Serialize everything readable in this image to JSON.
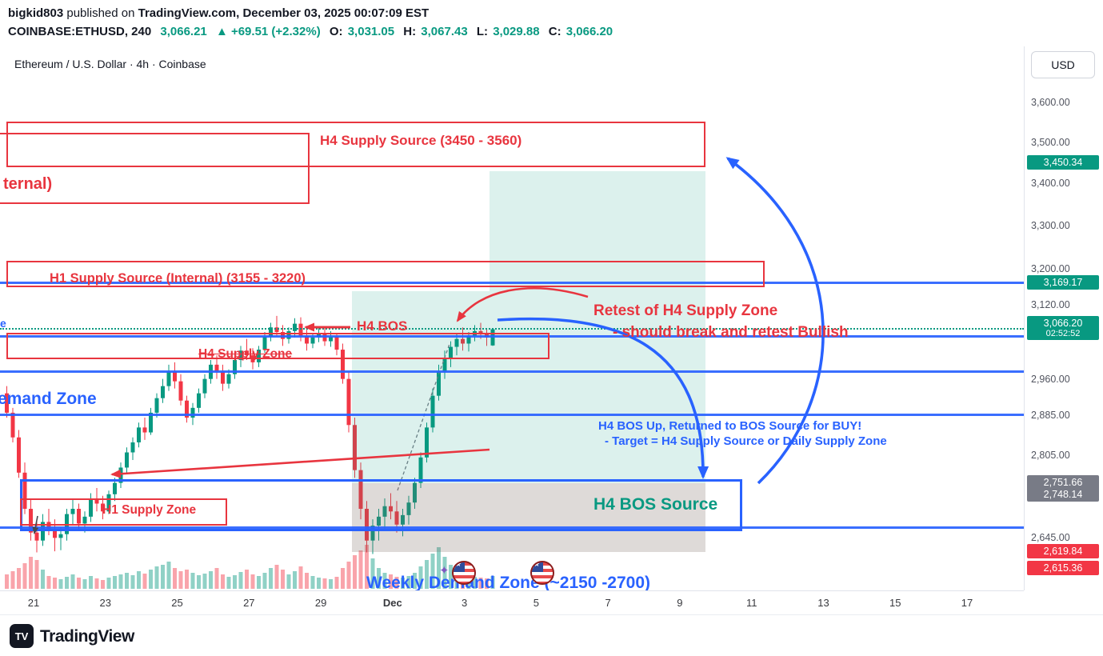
{
  "header": {
    "publish_line": {
      "user": "bigkid803",
      "mid": " published on ",
      "rest": "TradingView.com, December 03, 2025 00:07:09 EST"
    },
    "symbol_line": {
      "symbol": "COINBASE:ETHUSD, 240",
      "last": "3,066.21",
      "change": "▲ +69.51 (+2.32%)",
      "o_label": "O:",
      "o": "3,031.05",
      "h_label": "H:",
      "h": "3,067.43",
      "l_label": "L:",
      "l": "3,029.88",
      "c_label": "C:",
      "c": "3,066.20"
    }
  },
  "chart": {
    "title": "Ethereum / U.S. Dollar · 4h · Coinbase",
    "currency": "USD"
  },
  "annotations": {
    "h4_supply_source": "H4 Supply Source (3450 - 3560)",
    "daily_supply_cut": "ternal)",
    "h1_supply_source": "H1 Supply Source (Internal) (3155 - 3220)",
    "h4_bos": "H4 BOS",
    "h4_supply_zone": "H4 Supply Zone",
    "retest_line1": "Retest of H4 Supply Zone",
    "retest_line2": "- should break and retest Bullish",
    "left_cut_e": "e",
    "demand_zone_cut": "emand Zone",
    "bos_up_line1": "H4 BOS Up, Returned to BOS Source for BUY!",
    "bos_up_line2": "- Target = H4 Supply Source or Daily Supply Zone",
    "h4_bos_source": "H4 BOS Source",
    "h1_supply_zone": "H1 Supply Zone",
    "weekly_demand": "Weekly Demand Zone (~2150 -2700)"
  },
  "price_axis": {
    "ticks": [
      {
        "label": "3,600.00",
        "price": 3600
      },
      {
        "label": "3,500.00",
        "price": 3500
      },
      {
        "label": "3,400.00",
        "price": 3400
      },
      {
        "label": "3,300.00",
        "price": 3300
      },
      {
        "label": "3,200.00",
        "price": 3200
      },
      {
        "label": "3,120.00",
        "price": 3120
      },
      {
        "label": "2,960.00",
        "price": 2960
      },
      {
        "label": "2,885.00",
        "price": 2885
      },
      {
        "label": "2,805.00",
        "price": 2805
      },
      {
        "label": "2,645.00",
        "price": 2645
      }
    ],
    "badges": [
      {
        "label": "3,450.34",
        "price": 3450.34,
        "bg": "#089981"
      },
      {
        "label": "3,169.17",
        "price": 3169.17,
        "bg": "#089981"
      },
      {
        "label": "3,066.20",
        "price": 3066.2,
        "bg": "#089981",
        "countdown": "02:52:52"
      },
      {
        "label": "2,751.66",
        "price": 2751.66,
        "bg": "#787b86"
      },
      {
        "label": "2,748.14",
        "price": 2748.14,
        "bg": "#787b86"
      },
      {
        "label": "2,619.84",
        "price": 2619.84,
        "bg": "#F23645"
      },
      {
        "label": "2,615.36",
        "price": 2615.36,
        "bg": "#F23645"
      }
    ]
  },
  "time_axis": {
    "labels": [
      "21",
      "23",
      "25",
      "27",
      "29",
      "Dec",
      "3",
      "5",
      "7",
      "9",
      "11",
      "13",
      "15",
      "17"
    ]
  },
  "footer": {
    "brand": "TradingView"
  },
  "colors": {
    "up": "#089981",
    "down": "#F23645",
    "blue": "#2962FF",
    "annotation_red": "#E8353F",
    "teal_zone": "rgba(8,153,129,0.14)",
    "pink_zone": "rgba(242,54,69,0.12)"
  },
  "chart_data": {
    "type": "candlestick",
    "symbol": "COINBASE:ETHUSD",
    "interval": "240",
    "exchange": "Coinbase",
    "title": "Ethereum / U.S. Dollar · 4h · Coinbase",
    "scale": "log",
    "open": 3031.05,
    "high": 3067.43,
    "low": 3029.88,
    "close": 3066.2,
    "last": 3066.21,
    "change_abs": 69.51,
    "change_pct": 2.32,
    "countdown": "02:52:52",
    "current_price_line": 3066.2,
    "levels_blue": [
      3169.17,
      3051,
      2975,
      2885,
      2665
    ],
    "supply_zones_text": {
      "h4_supply_source_range": [
        3450,
        3560
      ],
      "h1_supply_source_range": [
        3155,
        3220
      ],
      "weekly_demand_range": [
        2150,
        2700
      ]
    },
    "candles": [
      [
        2930,
        2945,
        2880,
        2890
      ],
      [
        2890,
        2900,
        2830,
        2840
      ],
      [
        2840,
        2855,
        2760,
        2770
      ],
      [
        2770,
        2790,
        2690,
        2700
      ],
      [
        2700,
        2720,
        2640,
        2655
      ],
      [
        2655,
        2680,
        2618,
        2640
      ],
      [
        2640,
        2690,
        2630,
        2675
      ],
      [
        2675,
        2700,
        2650,
        2660
      ],
      [
        2660,
        2680,
        2620,
        2645
      ],
      [
        2645,
        2665,
        2622,
        2652
      ],
      [
        2652,
        2700,
        2640,
        2690
      ],
      [
        2690,
        2720,
        2670,
        2700
      ],
      [
        2700,
        2710,
        2660,
        2672
      ],
      [
        2672,
        2695,
        2655,
        2685
      ],
      [
        2685,
        2730,
        2675,
        2720
      ],
      [
        2720,
        2740,
        2695,
        2710
      ],
      [
        2710,
        2725,
        2680,
        2695
      ],
      [
        2695,
        2735,
        2690,
        2728
      ],
      [
        2728,
        2760,
        2715,
        2750
      ],
      [
        2750,
        2790,
        2740,
        2780
      ],
      [
        2780,
        2820,
        2770,
        2810
      ],
      [
        2810,
        2840,
        2795,
        2830
      ],
      [
        2830,
        2870,
        2820,
        2860
      ],
      [
        2860,
        2880,
        2835,
        2850
      ],
      [
        2850,
        2900,
        2845,
        2890
      ],
      [
        2890,
        2930,
        2880,
        2920
      ],
      [
        2920,
        2960,
        2910,
        2945
      ],
      [
        2945,
        2990,
        2935,
        2975
      ],
      [
        2975,
        2995,
        2940,
        2955
      ],
      [
        2955,
        2970,
        2905,
        2915
      ],
      [
        2915,
        2925,
        2870,
        2880
      ],
      [
        2880,
        2910,
        2865,
        2900
      ],
      [
        2900,
        2940,
        2890,
        2930
      ],
      [
        2930,
        2970,
        2920,
        2960
      ],
      [
        2960,
        3000,
        2950,
        2990
      ],
      [
        2990,
        3010,
        2960,
        2975
      ],
      [
        2975,
        2990,
        2935,
        2950
      ],
      [
        2950,
        2980,
        2940,
        2970
      ],
      [
        2970,
        3010,
        2960,
        3000
      ],
      [
        3000,
        3030,
        2985,
        3020
      ],
      [
        3020,
        3045,
        3000,
        3010
      ],
      [
        3010,
        3025,
        2980,
        2995
      ],
      [
        2995,
        3030,
        2985,
        3022
      ],
      [
        3022,
        3060,
        3015,
        3050
      ],
      [
        3050,
        3080,
        3040,
        3070
      ],
      [
        3070,
        3095,
        3050,
        3060
      ],
      [
        3060,
        3075,
        3030,
        3045
      ],
      [
        3045,
        3070,
        3035,
        3062
      ],
      [
        3062,
        3090,
        3048,
        3078
      ],
      [
        3078,
        3092,
        3040,
        3052
      ],
      [
        3052,
        3065,
        3020,
        3035
      ],
      [
        3035,
        3058,
        3025,
        3048
      ],
      [
        3048,
        3070,
        3038,
        3055
      ],
      [
        3055,
        3068,
        3030,
        3040
      ],
      [
        3040,
        3062,
        3028,
        3050
      ],
      [
        3050,
        3058,
        3010,
        3022
      ],
      [
        3022,
        3035,
        2950,
        2960
      ],
      [
        2960,
        2975,
        2850,
        2865
      ],
      [
        2865,
        2880,
        2760,
        2775
      ],
      [
        2775,
        2790,
        2680,
        2700
      ],
      [
        2700,
        2715,
        2618,
        2640
      ],
      [
        2640,
        2680,
        2615,
        2668
      ],
      [
        2668,
        2700,
        2640,
        2685
      ],
      [
        2685,
        2720,
        2660,
        2705
      ],
      [
        2705,
        2730,
        2680,
        2695
      ],
      [
        2695,
        2715,
        2655,
        2670
      ],
      [
        2670,
        2700,
        2648,
        2688
      ],
      [
        2688,
        2725,
        2670,
        2712
      ],
      [
        2712,
        2760,
        2700,
        2750
      ],
      [
        2750,
        2810,
        2740,
        2800
      ],
      [
        2800,
        2870,
        2790,
        2860
      ],
      [
        2860,
        2940,
        2850,
        2925
      ],
      [
        2925,
        2990,
        2915,
        2975
      ],
      [
        2975,
        3020,
        2960,
        3005
      ],
      [
        3005,
        3040,
        2985,
        3028
      ],
      [
        3028,
        3055,
        3010,
        3045
      ],
      [
        3045,
        3070,
        3020,
        3035
      ],
      [
        3035,
        3060,
        3018,
        3052
      ],
      [
        3052,
        3075,
        3040,
        3062
      ],
      [
        3062,
        3080,
        3045,
        3058
      ],
      [
        3058,
        3067,
        3030,
        3048
      ],
      [
        3031,
        3067,
        3030,
        3066
      ]
    ],
    "volume": [
      18,
      22,
      26,
      32,
      40,
      36,
      24,
      16,
      14,
      12,
      15,
      18,
      14,
      12,
      16,
      13,
      11,
      14,
      16,
      18,
      20,
      17,
      22,
      19,
      24,
      28,
      30,
      34,
      26,
      22,
      24,
      20,
      17,
      19,
      22,
      26,
      18,
      15,
      17,
      21,
      24,
      18,
      16,
      20,
      26,
      30,
      24,
      18,
      22,
      28,
      20,
      16,
      14,
      13,
      12,
      15,
      26,
      34,
      42,
      48,
      55,
      38,
      26,
      20,
      18,
      15,
      14,
      16,
      20,
      28,
      36,
      44,
      52,
      40,
      30,
      24,
      20,
      17,
      15,
      14,
      13,
      16
    ]
  }
}
